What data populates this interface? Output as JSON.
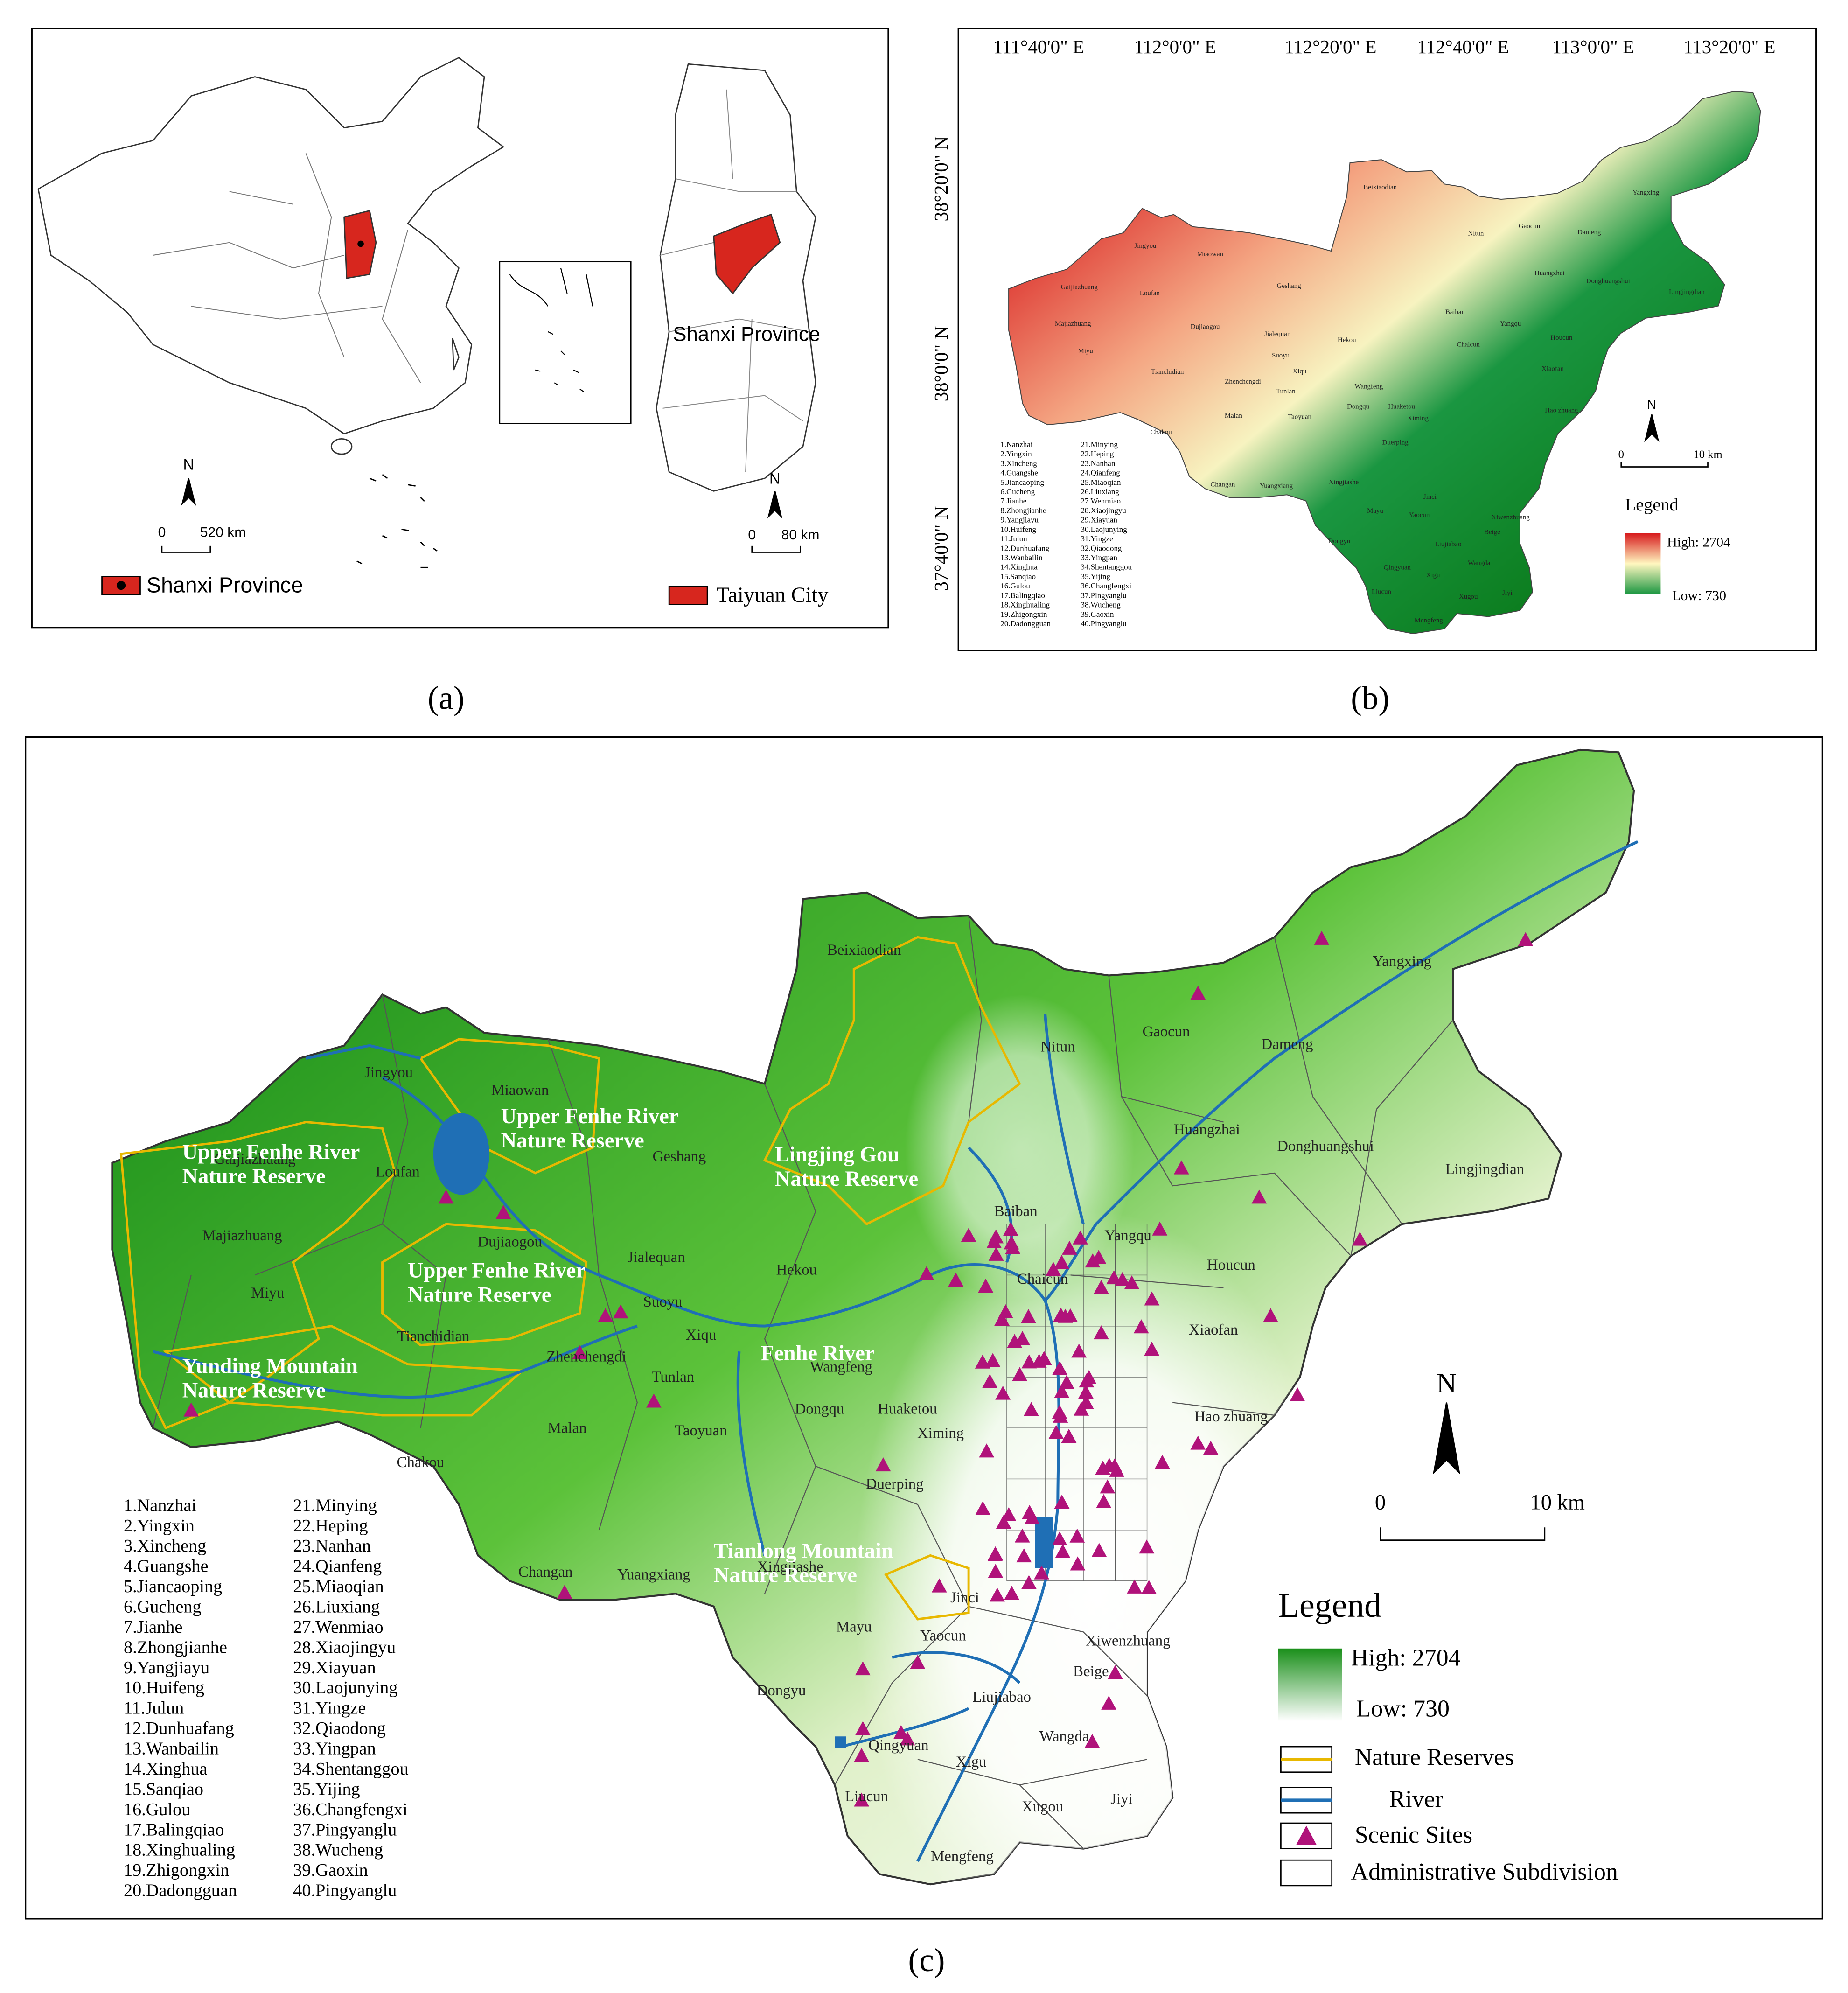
{
  "panels": {
    "a": "(a)",
    "b": "(b)",
    "c": "(c)"
  },
  "panel_a": {
    "north": "N",
    "scale_china": [
      "0",
      "520 km"
    ],
    "scale_shanxi": [
      "0",
      "80 km"
    ],
    "shanxi_label": "Shanxi Province",
    "legend": [
      "Shanxi Province",
      "Taiyuan City"
    ]
  },
  "panel_b": {
    "lon_labels": [
      "111°40'0\" E",
      "112°0'0\" E",
      "112°20'0\" E",
      "112°40'0\" E",
      "113°0'0\" E",
      "113°20'0\" E"
    ],
    "lat_labels": [
      "38°20'0\" N",
      "38°0'0\" N",
      "37°40'0\" N"
    ],
    "north": "N",
    "scale": [
      "0",
      "10 km"
    ],
    "legend_title": "Legend",
    "high": "High: 2704",
    "low": "Low: 730"
  },
  "panel_c": {
    "reserves": [
      [
        "Upper Fenhe River",
        "Nature Reserve"
      ],
      [
        "Upper Fenhe River",
        "Nature Reserve"
      ],
      [
        "Upper Fenhe River",
        "Nature Reserve"
      ],
      [
        "Lingjing Gou",
        "Nature Reserve"
      ],
      [
        "Yunding Mountain",
        "Nature Reserve"
      ],
      [
        "Tianlong Mountain",
        "Nature Reserve"
      ]
    ],
    "river_label": "Fenhe River",
    "north": "N",
    "scale": [
      "0",
      "10 km"
    ],
    "legend": {
      "title": "Legend",
      "high": "High: 2704",
      "low": "Low: 730",
      "items": [
        "Nature Reserves",
        "River",
        "Scenic Sites",
        "Administrative Subdivision"
      ]
    }
  },
  "towns": [
    "Beixiaodian",
    "Nitun",
    "Gaocun",
    "Dameng",
    "Yangxing",
    "Jingyou",
    "Miaowan",
    "Geshang",
    "Gaijiazhuang",
    "Loufan",
    "Majiazhuang",
    "Dujiaogou",
    "Jialequan",
    "Hekou",
    "Huangzhai",
    "Donghuangshui",
    "Lingjingdian",
    "Baiban",
    "Yangqu",
    "Miyu",
    "Suoyu",
    "Houcun",
    "Chaicun",
    "Tianchidian",
    "Xiqu",
    "Xiaofan",
    "Zhenchengdi",
    "Wangfeng",
    "Tunlan",
    "Dongqu",
    "Huaketou",
    "Taoyuan",
    "Malan",
    "Ximing",
    "Hao zhuang",
    "Chakou",
    "Duerping",
    "Changan",
    "Yuangxiang",
    "Xingjiashe",
    "Jinci",
    "Mayu",
    "Yaocun",
    "Xiwenzhuang",
    "Beige",
    "Dongyu",
    "Liujiabao",
    "Wangda",
    "Qingyuan",
    "Xigu",
    "Liucun",
    "Jiyi",
    "Xugou",
    "Mengfeng"
  ],
  "subdivisions": [
    "1.Nanzhai",
    "2.Yingxin",
    "3.Xincheng",
    "4.Guangshe",
    "5.Jiancaoping",
    "6.Gucheng",
    "7.Jianhe",
    "8.Zhongjianhe",
    "9.Yangjiayu",
    "10.Huifeng",
    "11.Julun",
    "12.Dunhuafang",
    "13.Wanbailin",
    "14.Xinghua",
    "15.Sanqiao",
    "16.Gulou",
    "17.Balingqiao",
    "18.Xinghualing",
    "19.Zhigongxin",
    "20.Dadongguan",
    "21.Minying",
    "22.Heping",
    "23.Nanhan",
    "24.Qianfeng",
    "25.Miaoqian",
    "26.Liuxiang",
    "27.Wenmiao",
    "28.Xiaojingyu",
    "29.Xiayuan",
    "30.Laojunying",
    "31.Yingze",
    "32.Qiaodong",
    "33.Yingpan",
    "34.Shentanggou",
    "35.Yijing",
    "36.Changfengxi",
    "37.Pingyanglu",
    "38.Wucheng",
    "39.Gaoxin",
    "40.Pingyanglu"
  ]
}
